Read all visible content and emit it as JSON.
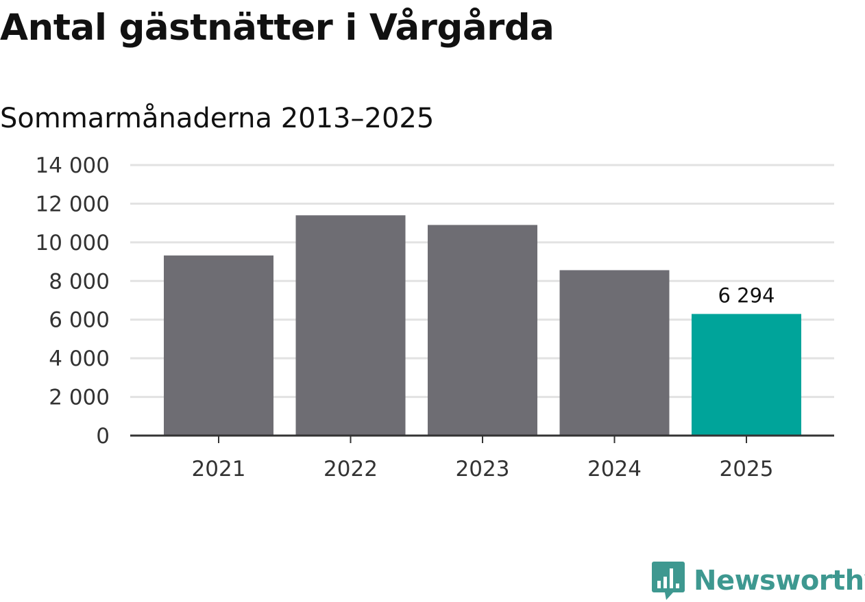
{
  "title": "Antal gästnätter i Vårgårda",
  "subtitle": "Sommarmånaderna 2013–2025",
  "colors": {
    "bar_default": "#6e6d73",
    "bar_highlight": "#00a49a",
    "gridline": "#e2e2e2",
    "axis": "#333333",
    "brand": "#3e9890"
  },
  "brand": {
    "name": "Newsworthy",
    "icon": "newsworthy-chart-bubble-icon"
  },
  "chart_data": {
    "type": "bar",
    "categories": [
      "2021",
      "2022",
      "2023",
      "2024",
      "2025"
    ],
    "values": [
      9320,
      11400,
      10900,
      8560,
      6294
    ],
    "highlight_index": 4,
    "data_labels": [
      {
        "index": 4,
        "text": "6 294"
      }
    ],
    "ylim": [
      0,
      14000
    ],
    "yticks": [
      0,
      2000,
      4000,
      6000,
      8000,
      10000,
      12000,
      14000
    ],
    "ytick_labels": [
      "0",
      "2 000",
      "4 000",
      "6 000",
      "8 000",
      "10 000",
      "12 000",
      "14 000"
    ],
    "xlabel": "",
    "ylabel": "",
    "grid": true,
    "legend": "none"
  }
}
